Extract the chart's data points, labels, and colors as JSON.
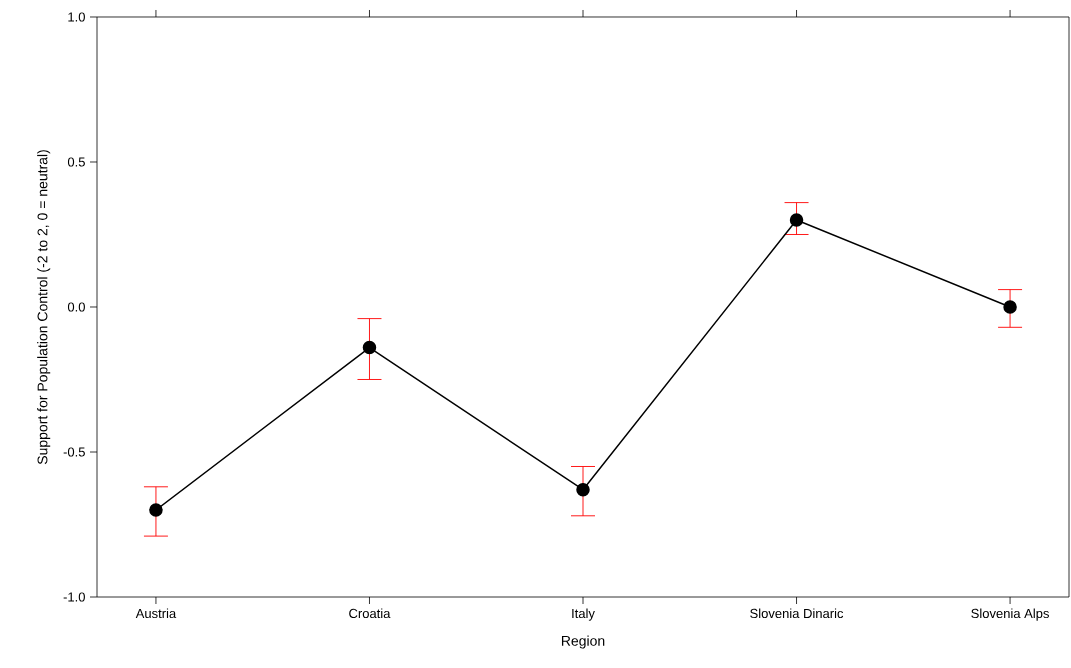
{
  "chart_data": {
    "type": "line",
    "xlabel": "Region",
    "ylabel": "Support for Population Control (-2 to 2, 0 = neutral)",
    "categories": [
      "Austria",
      "Croatia",
      "Italy",
      "Slovenia Dinaric",
      "Slovenia Alps"
    ],
    "series": [
      {
        "color": "#000000",
        "values": [
          -0.7,
          -0.14,
          -0.63,
          0.3,
          0.0
        ],
        "errors": [
          [
            -0.79,
            -0.62
          ],
          [
            -0.25,
            -0.04
          ],
          [
            -0.72,
            -0.55
          ],
          [
            0.25,
            0.36
          ],
          [
            -0.07,
            0.06
          ]
        ]
      }
    ],
    "ylim": [
      -1.0,
      1.0
    ],
    "yticks": [
      {
        "value": -1.0,
        "label": "-1.0"
      },
      {
        "value": -0.5,
        "label": "-0.5"
      },
      {
        "value": 0.0,
        "label": "0.0"
      },
      {
        "value": 0.5,
        "label": "0.5"
      },
      {
        "value": 1.0,
        "label": "1.0"
      }
    ],
    "marker": "circle",
    "line_style": "solid",
    "grid": false
  }
}
